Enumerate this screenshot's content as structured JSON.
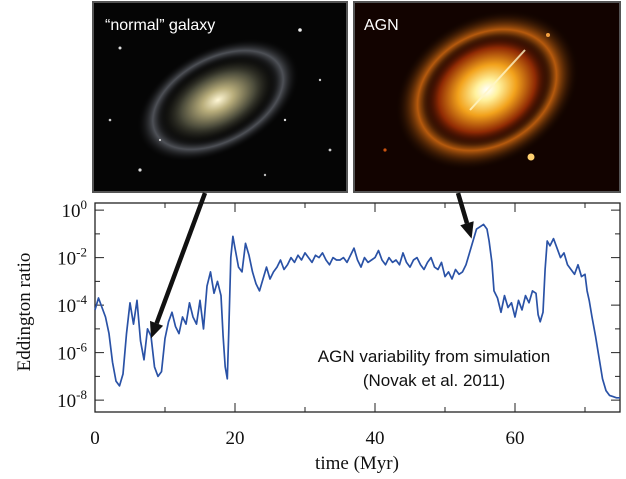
{
  "chart_data": {
    "type": "line",
    "xlabel": "time (Myr)",
    "ylabel": "Eddington ratio",
    "xlim": [
      0,
      75
    ],
    "ylim_log10": [
      -8.5,
      0.3
    ],
    "yscale": "log",
    "x_ticks": [
      0,
      20,
      40,
      60
    ],
    "x_tick_labels": [
      "0",
      "20",
      "40",
      "60"
    ],
    "y_ticks_log10": [
      0,
      -2,
      -4,
      -6,
      -8
    ],
    "y_tick_labels": [
      {
        "base": "10",
        "exp": "0"
      },
      {
        "base": "10",
        "exp": "-2"
      },
      {
        "base": "10",
        "exp": "-4"
      },
      {
        "base": "10",
        "exp": "-6"
      },
      {
        "base": "10",
        "exp": "-8"
      }
    ],
    "annotation": {
      "line1": "AGN variability from simulation",
      "line2": "(Novak et al. 2011)"
    },
    "insets": [
      {
        "label": "“normal” galaxy",
        "arrow_target": {
          "x": 8,
          "log10_y": -5.4
        }
      },
      {
        "label": "AGN",
        "arrow_target": {
          "x": 53.8,
          "log10_y": -1.2
        }
      }
    ],
    "series": [
      {
        "color": "#2a52a6",
        "points": [
          [
            0,
            -4.2
          ],
          [
            0.5,
            -3.7
          ],
          [
            1,
            -4.1
          ],
          [
            1.5,
            -4.5
          ],
          [
            2,
            -5.2
          ],
          [
            2.5,
            -6.4
          ],
          [
            3,
            -7.2
          ],
          [
            3.5,
            -7.4
          ],
          [
            4,
            -6.9
          ],
          [
            4.5,
            -5.2
          ],
          [
            5,
            -3.9
          ],
          [
            5.5,
            -4.8
          ],
          [
            6,
            -3.8
          ],
          [
            6.5,
            -5.5
          ],
          [
            7,
            -6.3
          ],
          [
            7.5,
            -5.0
          ],
          [
            8,
            -5.3
          ],
          [
            8.5,
            -6.6
          ],
          [
            9,
            -7.0
          ],
          [
            9.5,
            -6.8
          ],
          [
            10,
            -5.4
          ],
          [
            10.5,
            -4.7
          ],
          [
            11,
            -4.3
          ],
          [
            11.5,
            -4.9
          ],
          [
            12,
            -5.2
          ],
          [
            12.5,
            -4.5
          ],
          [
            13,
            -4.8
          ],
          [
            13.5,
            -3.9
          ],
          [
            14,
            -4.5
          ],
          [
            14.5,
            -4.8
          ],
          [
            15,
            -3.8
          ],
          [
            15.5,
            -5.0
          ],
          [
            16,
            -3.2
          ],
          [
            16.5,
            -2.6
          ],
          [
            17,
            -3.5
          ],
          [
            17.5,
            -3.0
          ],
          [
            18,
            -3.6
          ],
          [
            18.3,
            -5.3
          ],
          [
            18.6,
            -6.6
          ],
          [
            18.9,
            -7.1
          ],
          [
            19.1,
            -5.2
          ],
          [
            19.4,
            -2.0
          ],
          [
            19.7,
            -1.1
          ],
          [
            20,
            -1.6
          ],
          [
            20.5,
            -2.4
          ],
          [
            21,
            -2.6
          ],
          [
            21.5,
            -1.4
          ],
          [
            22,
            -1.9
          ],
          [
            22.5,
            -2.6
          ],
          [
            23,
            -3.1
          ],
          [
            23.5,
            -3.4
          ],
          [
            24,
            -2.9
          ],
          [
            24.5,
            -2.4
          ],
          [
            25,
            -2.9
          ],
          [
            25.5,
            -2.6
          ],
          [
            26,
            -2.4
          ],
          [
            26.5,
            -2.1
          ],
          [
            27,
            -2.5
          ],
          [
            27.5,
            -2.3
          ],
          [
            28,
            -2.0
          ],
          [
            28.5,
            -2.2
          ],
          [
            29,
            -1.9
          ],
          [
            29.5,
            -2.1
          ],
          [
            30,
            -1.8
          ],
          [
            30.5,
            -2.0
          ],
          [
            31,
            -2.2
          ],
          [
            31.5,
            -1.9
          ],
          [
            32,
            -2.0
          ],
          [
            32.5,
            -1.8
          ],
          [
            33,
            -2.1
          ],
          [
            33.5,
            -2.3
          ],
          [
            34,
            -2.0
          ],
          [
            34.5,
            -2.1
          ],
          [
            35,
            -2.1
          ],
          [
            35.5,
            -2.0
          ],
          [
            36,
            -2.2
          ],
          [
            36.5,
            -1.9
          ],
          [
            37,
            -1.6
          ],
          [
            37.5,
            -2.1
          ],
          [
            38,
            -2.4
          ],
          [
            38.5,
            -2.0
          ],
          [
            39,
            -2.2
          ],
          [
            39.5,
            -2.1
          ],
          [
            40,
            -2.0
          ],
          [
            40.5,
            -1.7
          ],
          [
            41,
            -2.1
          ],
          [
            41.5,
            -2.3
          ],
          [
            42,
            -2.0
          ],
          [
            42.5,
            -2.2
          ],
          [
            43,
            -2.1
          ],
          [
            43.5,
            -2.3
          ],
          [
            44,
            -1.8
          ],
          [
            44.5,
            -2.2
          ],
          [
            45,
            -2.4
          ],
          [
            45.5,
            -2.1
          ],
          [
            46,
            -2.0
          ],
          [
            46.5,
            -2.3
          ],
          [
            47,
            -2.5
          ],
          [
            47.5,
            -2.2
          ],
          [
            48,
            -2.0
          ],
          [
            48.5,
            -2.4
          ],
          [
            49,
            -2.5
          ],
          [
            49.5,
            -2.2
          ],
          [
            50,
            -2.8
          ],
          [
            50.5,
            -2.6
          ],
          [
            51,
            -2.9
          ],
          [
            51.5,
            -2.5
          ],
          [
            52,
            -2.7
          ],
          [
            52.5,
            -2.6
          ],
          [
            53,
            -2.3
          ],
          [
            53.5,
            -1.8
          ],
          [
            54,
            -1.3
          ],
          [
            54.5,
            -0.8
          ],
          [
            55,
            -0.7
          ],
          [
            55.5,
            -0.6
          ],
          [
            56,
            -0.8
          ],
          [
            56.3,
            -1.3
          ],
          [
            56.7,
            -2.2
          ],
          [
            57,
            -3.4
          ],
          [
            57.5,
            -3.7
          ],
          [
            58,
            -4.3
          ],
          [
            58.5,
            -3.6
          ],
          [
            59,
            -4.1
          ],
          [
            59.5,
            -3.9
          ],
          [
            60,
            -4.5
          ],
          [
            60.5,
            -3.8
          ],
          [
            61,
            -4.2
          ],
          [
            61.5,
            -3.6
          ],
          [
            62,
            -3.9
          ],
          [
            62.5,
            -3.4
          ],
          [
            63,
            -3.5
          ],
          [
            63.3,
            -4.4
          ],
          [
            63.6,
            -4.7
          ],
          [
            64,
            -4.3
          ],
          [
            64.3,
            -2.5
          ],
          [
            64.6,
            -1.3
          ],
          [
            65,
            -1.5
          ],
          [
            65.5,
            -1.2
          ],
          [
            66,
            -1.6
          ],
          [
            66.5,
            -2.0
          ],
          [
            67,
            -1.8
          ],
          [
            67.5,
            -2.3
          ],
          [
            68,
            -2.5
          ],
          [
            68.5,
            -2.7
          ],
          [
            69,
            -2.3
          ],
          [
            69.5,
            -2.8
          ],
          [
            70,
            -2.7
          ],
          [
            70.3,
            -3.4
          ],
          [
            70.6,
            -3.8
          ],
          [
            71,
            -4.5
          ],
          [
            71.5,
            -5.3
          ],
          [
            72,
            -6.2
          ],
          [
            72.5,
            -7.1
          ],
          [
            73,
            -7.6
          ],
          [
            73.5,
            -7.8
          ],
          [
            74,
            -7.85
          ],
          [
            74.5,
            -7.9
          ],
          [
            75,
            -7.9
          ]
        ]
      }
    ]
  }
}
